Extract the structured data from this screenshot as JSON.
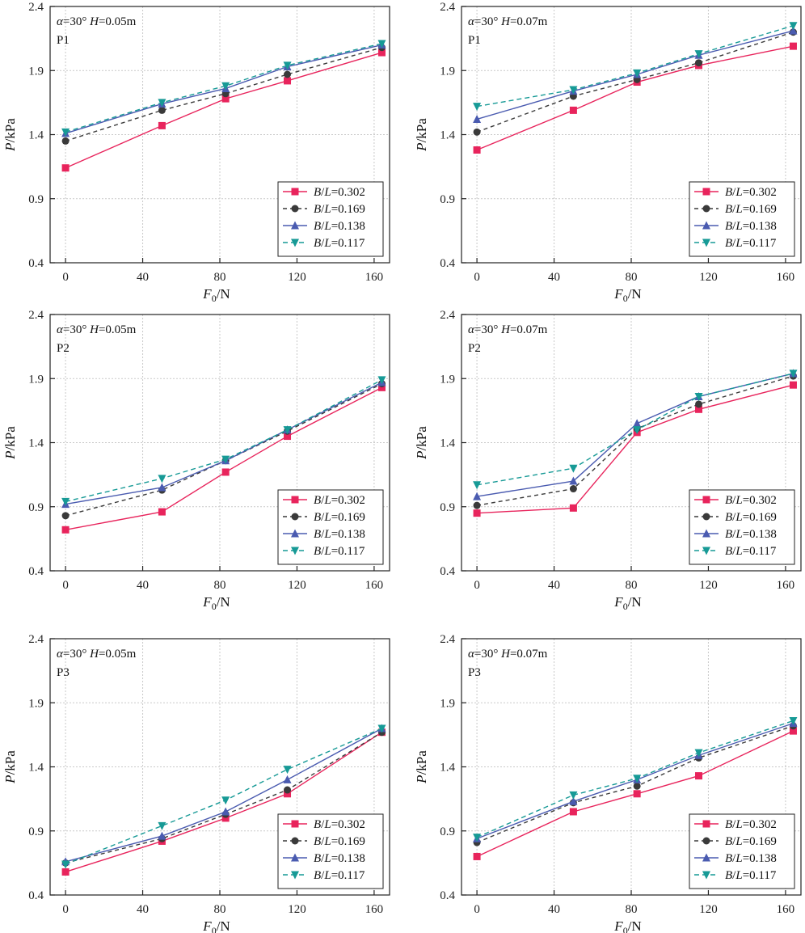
{
  "legend_entries": [
    {
      "prefix": "B",
      "slash": "/",
      "var": "L",
      "value": "=0.302"
    },
    {
      "prefix": "B",
      "slash": "/",
      "var": "L",
      "value": "=0.169"
    },
    {
      "prefix": "B",
      "slash": "/",
      "var": "L",
      "value": "=0.138"
    },
    {
      "prefix": "B",
      "slash": "/",
      "var": "L",
      "value": "=0.117"
    }
  ],
  "axis_text": {
    "x_label_main": "F",
    "x_label_sub": "0",
    "x_label_unit": "/N",
    "y_label_main": "P",
    "y_label_unit": "/kPa"
  },
  "series_styles": [
    {
      "name": "B/L=0.302",
      "color": "#e8245c",
      "marker": "square",
      "dash": ""
    },
    {
      "name": "B/L=0.169",
      "color": "#3a3a3a",
      "marker": "circle",
      "dash": "5 4"
    },
    {
      "name": "B/L=0.138",
      "color": "#4a5bb0",
      "marker": "triangle-up",
      "dash": ""
    },
    {
      "name": "B/L=0.117",
      "color": "#179a96",
      "marker": "triangle-down",
      "dash": "6 4"
    }
  ],
  "chart_data": [
    {
      "type": "line",
      "panel": "P1",
      "annotation": {
        "alpha": "α",
        "alpha_value": "=30°",
        "h": "H",
        "h_value": "=0.05m",
        "point": "P1"
      },
      "x": [
        0,
        50,
        83,
        115,
        164
      ],
      "xlim": [
        -8,
        168
      ],
      "ylim": [
        0.4,
        2.4
      ],
      "xticks": [
        "0",
        "40",
        "80",
        "120",
        "160"
      ],
      "yticks": [
        "0.4",
        "0.9",
        "1.4",
        "1.9",
        "2.4"
      ],
      "series": [
        {
          "name": "B/L=0.302",
          "values": [
            1.14,
            1.47,
            1.68,
            1.82,
            2.04
          ]
        },
        {
          "name": "B/L=0.169",
          "values": [
            1.35,
            1.59,
            1.72,
            1.87,
            2.08
          ]
        },
        {
          "name": "B/L=0.138",
          "values": [
            1.41,
            1.64,
            1.76,
            1.93,
            2.1
          ]
        },
        {
          "name": "B/L=0.117",
          "values": [
            1.42,
            1.65,
            1.78,
            1.94,
            2.11
          ]
        }
      ]
    },
    {
      "type": "line",
      "panel": "P1",
      "annotation": {
        "alpha": "α",
        "alpha_value": "=30°",
        "h": "H",
        "h_value": "=0.07m",
        "point": "P1"
      },
      "x": [
        0,
        50,
        83,
        115,
        164
      ],
      "xlim": [
        -8,
        168
      ],
      "ylim": [
        0.4,
        2.4
      ],
      "xticks": [
        "0",
        "40",
        "80",
        "120",
        "160"
      ],
      "yticks": [
        "0.4",
        "0.9",
        "1.4",
        "1.9",
        "2.4"
      ],
      "series": [
        {
          "name": "B/L=0.302",
          "values": [
            1.28,
            1.59,
            1.81,
            1.94,
            2.09
          ]
        },
        {
          "name": "B/L=0.169",
          "values": [
            1.42,
            1.7,
            1.83,
            1.96,
            2.2
          ]
        },
        {
          "name": "B/L=0.138",
          "values": [
            1.52,
            1.74,
            1.87,
            2.02,
            2.21
          ]
        },
        {
          "name": "B/L=0.117",
          "values": [
            1.62,
            1.75,
            1.88,
            2.03,
            2.25
          ]
        }
      ]
    },
    {
      "type": "line",
      "panel": "P2",
      "annotation": {
        "alpha": "α",
        "alpha_value": "=30°",
        "h": "H",
        "h_value": "=0.05m",
        "point": "P2"
      },
      "x": [
        0,
        50,
        83,
        115,
        164
      ],
      "xlim": [
        -8,
        168
      ],
      "ylim": [
        0.4,
        2.4
      ],
      "xticks": [
        "0",
        "40",
        "80",
        "120",
        "160"
      ],
      "yticks": [
        "0.4",
        "0.9",
        "1.4",
        "1.9",
        "2.4"
      ],
      "series": [
        {
          "name": "B/L=0.302",
          "values": [
            0.72,
            0.86,
            1.17,
            1.45,
            1.83
          ]
        },
        {
          "name": "B/L=0.169",
          "values": [
            0.83,
            1.03,
            1.26,
            1.49,
            1.86
          ]
        },
        {
          "name": "B/L=0.138",
          "values": [
            0.92,
            1.05,
            1.26,
            1.5,
            1.87
          ]
        },
        {
          "name": "B/L=0.117",
          "values": [
            0.94,
            1.12,
            1.27,
            1.5,
            1.89
          ]
        }
      ]
    },
    {
      "type": "line",
      "panel": "P2",
      "annotation": {
        "alpha": "α",
        "alpha_value": "=30°",
        "h": "H",
        "h_value": "=0.07m",
        "point": "P2"
      },
      "x": [
        0,
        50,
        83,
        115,
        164
      ],
      "xlim": [
        -8,
        168
      ],
      "ylim": [
        0.4,
        2.4
      ],
      "xticks": [
        "0",
        "40",
        "80",
        "120",
        "160"
      ],
      "yticks": [
        "0.4",
        "0.9",
        "1.4",
        "1.9",
        "2.4"
      ],
      "series": [
        {
          "name": "B/L=0.302",
          "values": [
            0.85,
            0.89,
            1.48,
            1.66,
            1.85
          ]
        },
        {
          "name": "B/L=0.169",
          "values": [
            0.91,
            1.04,
            1.51,
            1.7,
            1.92
          ]
        },
        {
          "name": "B/L=0.138",
          "values": [
            0.98,
            1.1,
            1.55,
            1.76,
            1.94
          ]
        },
        {
          "name": "B/L=0.117",
          "values": [
            1.07,
            1.2,
            1.5,
            1.76,
            1.94
          ]
        }
      ]
    },
    {
      "type": "line",
      "panel": "P3",
      "annotation": {
        "alpha": "α",
        "alpha_value": "=30°",
        "h": "H",
        "h_value": "=0.05m",
        "point": "P3"
      },
      "x": [
        0,
        50,
        83,
        115,
        164
      ],
      "xlim": [
        -8,
        168
      ],
      "ylim": [
        0.4,
        2.4
      ],
      "xticks": [
        "0",
        "40",
        "80",
        "120",
        "160"
      ],
      "yticks": [
        "0.4",
        "0.9",
        "1.4",
        "1.9",
        "2.4"
      ],
      "series": [
        {
          "name": "B/L=0.302",
          "values": [
            0.58,
            0.82,
            1.0,
            1.19,
            1.67
          ]
        },
        {
          "name": "B/L=0.169",
          "values": [
            0.65,
            0.84,
            1.03,
            1.22,
            1.67
          ]
        },
        {
          "name": "B/L=0.138",
          "values": [
            0.66,
            0.86,
            1.05,
            1.3,
            1.7
          ]
        },
        {
          "name": "B/L=0.117",
          "values": [
            0.64,
            0.94,
            1.14,
            1.38,
            1.7
          ]
        }
      ]
    },
    {
      "type": "line",
      "panel": "P3",
      "annotation": {
        "alpha": "α",
        "alpha_value": "=30°",
        "h": "H",
        "h_value": "=0.07m",
        "point": "P3"
      },
      "x": [
        0,
        50,
        83,
        115,
        164
      ],
      "xlim": [
        -8,
        168
      ],
      "ylim": [
        0.4,
        2.4
      ],
      "xticks": [
        "0",
        "40",
        "80",
        "120",
        "160"
      ],
      "yticks": [
        "0.4",
        "0.9",
        "1.4",
        "1.9",
        "2.4"
      ],
      "series": [
        {
          "name": "B/L=0.302",
          "values": [
            0.7,
            1.05,
            1.19,
            1.33,
            1.68
          ]
        },
        {
          "name": "B/L=0.169",
          "values": [
            0.81,
            1.12,
            1.25,
            1.47,
            1.72
          ]
        },
        {
          "name": "B/L=0.138",
          "values": [
            0.84,
            1.13,
            1.3,
            1.49,
            1.74
          ]
        },
        {
          "name": "B/L=0.117",
          "values": [
            0.85,
            1.18,
            1.31,
            1.51,
            1.76
          ]
        }
      ]
    }
  ]
}
